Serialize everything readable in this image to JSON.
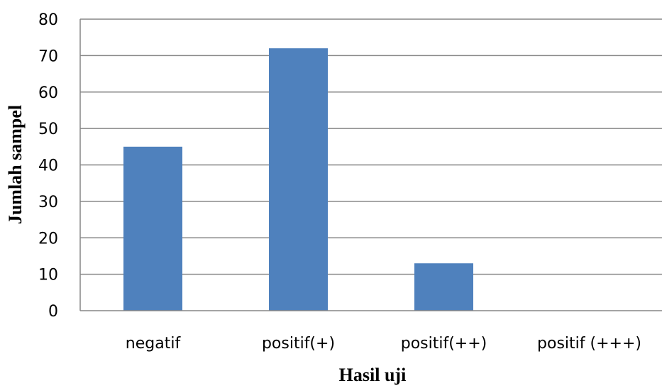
{
  "chart_data": {
    "type": "bar",
    "categories": [
      "negatif",
      "positif(+)",
      "positif(++)",
      "positif (+++)"
    ],
    "values": [
      45,
      72,
      13,
      0
    ],
    "xlabel": "Hasil uji",
    "ylabel": "Jumlah sampel",
    "ylim": [
      0,
      80
    ],
    "yticks": [
      "0",
      "10",
      "20",
      "30",
      "40",
      "50",
      "60",
      "70",
      "80"
    ],
    "grid": true,
    "bar_color": "#4f81bd",
    "gridline_color": "#868686"
  }
}
